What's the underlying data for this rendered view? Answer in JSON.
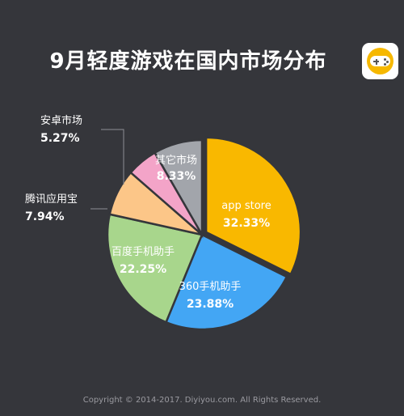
{
  "page": {
    "title": "9月轻度游戏在国内市场分布",
    "footer": "Copyright © 2014-2017. Diyiyou.com. All Rights Reserved.",
    "background": "#35363b"
  },
  "icon": {
    "name": "gamepad-icon",
    "color": "#f6b800"
  },
  "chart_data": {
    "type": "pie",
    "title": "9月轻度游戏在国内市场分布",
    "slices": [
      {
        "label": "app store",
        "value": 32.33,
        "display": "32.33%",
        "color": "#f9b800"
      },
      {
        "label": "360手机助手",
        "value": 23.88,
        "display": "23.88%",
        "color": "#43a6f4"
      },
      {
        "label": "百度手机助手",
        "value": 22.25,
        "display": "22.25%",
        "color": "#a8d68c"
      },
      {
        "label": "腾讯应用宝",
        "value": 7.94,
        "display": "7.94%",
        "color": "#fcc688"
      },
      {
        "label": "安卓市场",
        "value": 5.27,
        "display": "5.27%",
        "color": "#f3a4c8"
      },
      {
        "label": "其它市场",
        "value": 8.33,
        "display": "8.33%",
        "color": "#a2a5ab"
      }
    ],
    "start_angle_deg": 0,
    "direction": "clockwise",
    "exploded": "app store"
  }
}
